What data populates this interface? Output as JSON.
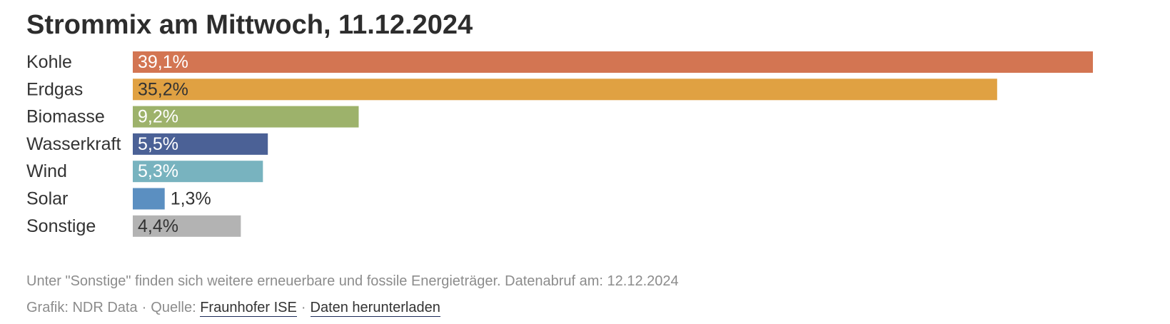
{
  "chart_data": {
    "type": "bar",
    "orientation": "horizontal",
    "title": "Strommix am Mittwoch, 11.12.2024",
    "categories": [
      "Kohle",
      "Erdgas",
      "Biomasse",
      "Wasserkraft",
      "Wind",
      "Solar",
      "Sonstige"
    ],
    "values": [
      39.1,
      35.2,
      9.2,
      5.5,
      5.3,
      1.3,
      4.4
    ],
    "value_labels": [
      "39,1%",
      "35,2%",
      "9,2%",
      "5,5%",
      "5,3%",
      "1,3%",
      "4,4%"
    ],
    "colors": [
      "#d37552",
      "#e0a142",
      "#9db26b",
      "#4b6196",
      "#78b3bf",
      "#5b8fc1",
      "#b3b3b3"
    ],
    "label_colors": [
      "#ffffff",
      "#333333",
      "#ffffff",
      "#ffffff",
      "#ffffff",
      "#333333",
      "#333333"
    ],
    "xlim": [
      0,
      39.1
    ],
    "grid": false,
    "legend": "none"
  },
  "footer": {
    "note": "Unter \"Sonstige\" finden sich weitere erneuerbare und fossile Energieträger. Datenabruf am: 12.12.2024",
    "graphic_credit": "Grafik: NDR Data",
    "separator": "·",
    "source_prefix": "Quelle:",
    "source_link": "Fraunhofer ISE",
    "download_link": "Daten herunterladen"
  }
}
